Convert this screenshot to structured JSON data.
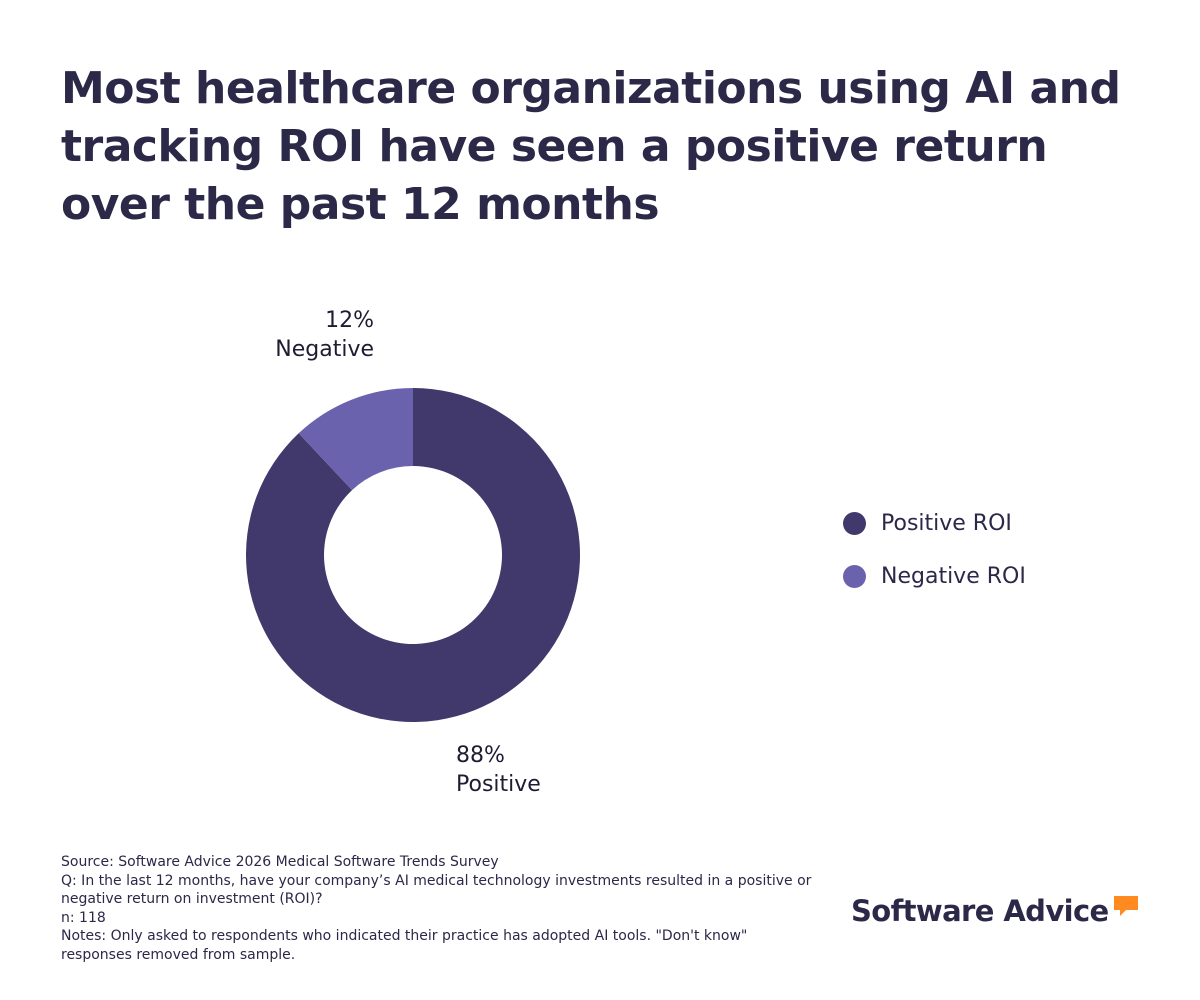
{
  "colors": {
    "positive": "#41386c",
    "negative": "#6b62ae",
    "title": "#2b2848",
    "brand_accent": "#ff8a1f"
  },
  "title": "Most healthcare organizations using AI and tracking ROI have seen a positive return over the past 12 months",
  "chart_data": {
    "type": "pie",
    "variant": "donut",
    "title": "Most healthcare organizations using AI and tracking ROI have seen a positive return over the past 12 months",
    "slices": [
      {
        "name": "Positive ROI",
        "label_value": "88%",
        "label_text": "Positive",
        "value": 88,
        "color": "#41386c"
      },
      {
        "name": "Negative ROI",
        "label_value": "12%",
        "label_text": "Negative",
        "value": 12,
        "color": "#6b62ae"
      }
    ],
    "legend": [
      "Positive ROI",
      "Negative ROI"
    ],
    "legend_position": "right"
  },
  "footnotes": {
    "source": "Source: Software Advice 2026 Medical Software Trends Survey",
    "question": "Q: In the last 12 months, have your company’s AI medical technology investments resulted in a positive or negative return on investment (ROI)?",
    "n": "n: 118",
    "notes": "Notes: Only asked to respondents who indicated their practice has adopted AI tools. \"Don't know\" responses removed from sample."
  },
  "brand": {
    "name": "Software Advice",
    "icon": "speech-bubble-icon"
  }
}
